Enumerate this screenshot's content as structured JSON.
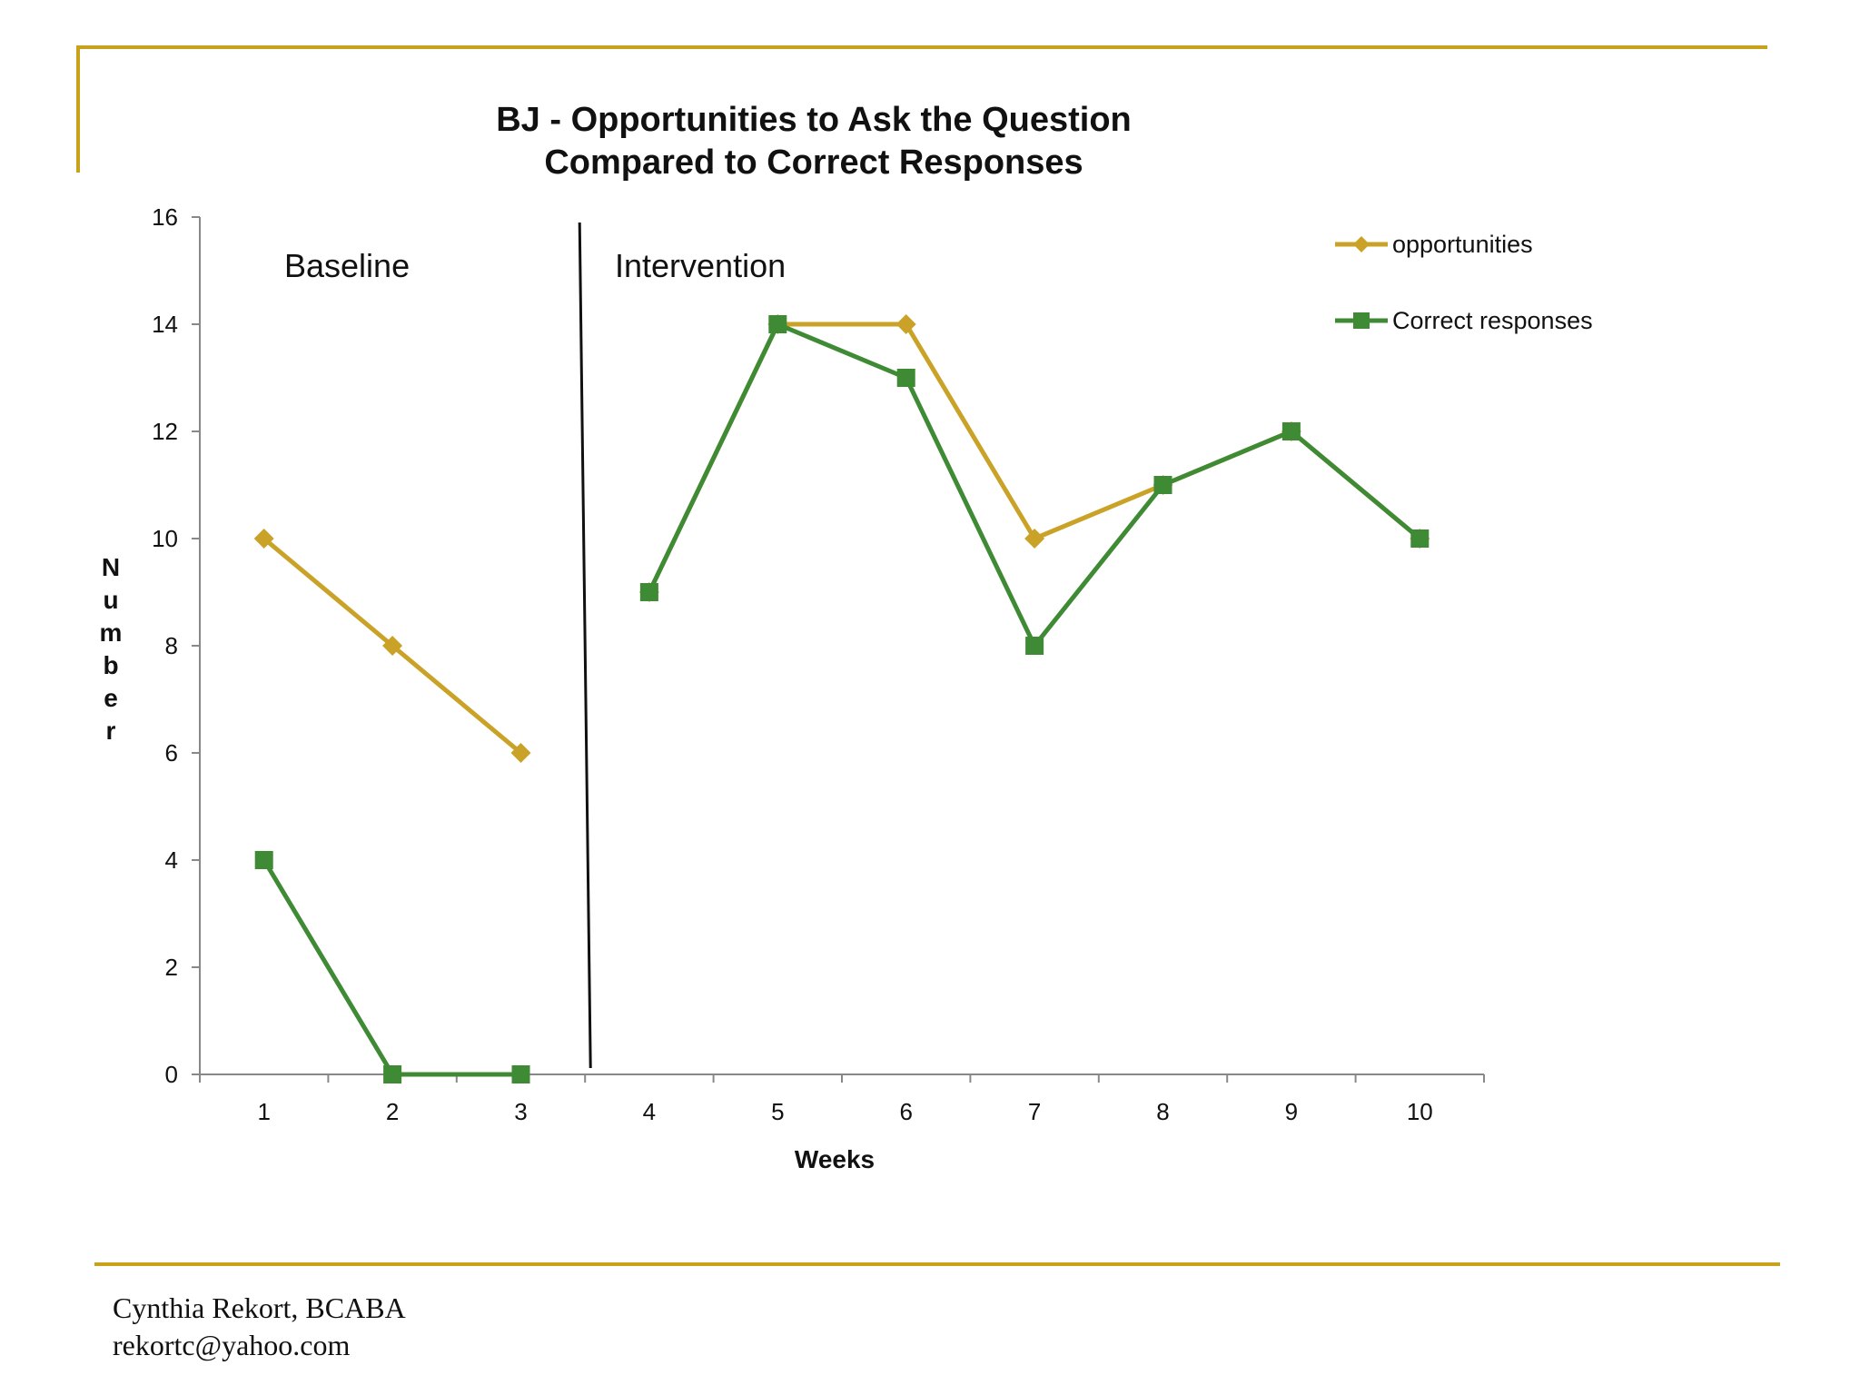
{
  "colors": {
    "rule": "#c9a21b",
    "opportunities": "#c9a227",
    "correct": "#3f8a34",
    "axis": "#888888",
    "divider": "#111111"
  },
  "chart_data": {
    "type": "line",
    "title": [
      "BJ - Opportunities to Ask the Question",
      "Compared to Correct Responses"
    ],
    "xlabel": "Weeks",
    "ylabel": "Number",
    "categories": [
      "1",
      "2",
      "3",
      "4",
      "5",
      "6",
      "7",
      "8",
      "9",
      "10"
    ],
    "ylim": [
      0,
      16
    ],
    "yticks": [
      "0",
      "2",
      "4",
      "6",
      "8",
      "10",
      "12",
      "14",
      "16"
    ],
    "grid": false,
    "legend_position": "top-right",
    "phases": [
      {
        "label": "Baseline",
        "weeks": [
          1,
          3
        ]
      },
      {
        "label": "Intervention",
        "weeks": [
          4,
          10
        ]
      }
    ],
    "phase_change_after_week": 3,
    "series": [
      {
        "name": "opportunities",
        "marker": "diamond",
        "values": [
          10,
          8,
          6,
          9,
          14,
          14,
          10,
          11,
          12,
          10
        ]
      },
      {
        "name": "Correct responses",
        "marker": "square",
        "values": [
          4,
          0,
          0,
          9,
          14,
          13,
          8,
          11,
          12,
          10
        ]
      }
    ]
  },
  "footer": {
    "author": "Cynthia Rekort, BCABA",
    "email": "rekortc@yahoo.com"
  }
}
